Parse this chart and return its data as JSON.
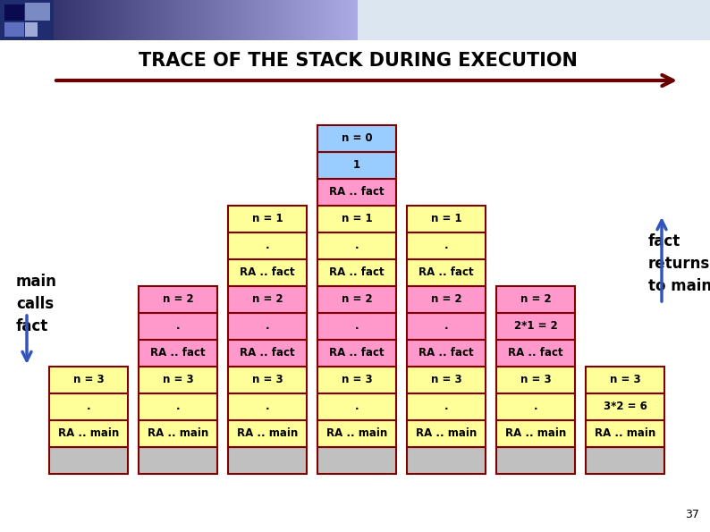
{
  "title": "TRACE OF THE STACK DURING EXECUTION",
  "bg_color": "#ffffff",
  "arrow_color": "#6b0000",
  "colors": {
    "yellow": "#ffff99",
    "pink": "#ff99cc",
    "blue_light": "#99ccff",
    "gray": "#c0c0c0",
    "border": "#800000"
  },
  "col_data": [
    [
      {
        "text": "n = 3",
        "color": "yellow"
      },
      {
        "text": ".",
        "color": "yellow"
      },
      {
        "text": "RA .. main",
        "color": "yellow"
      },
      {
        "text": "",
        "color": "gray"
      }
    ],
    [
      {
        "text": "n = 2",
        "color": "pink"
      },
      {
        "text": ".",
        "color": "pink"
      },
      {
        "text": "RA .. fact",
        "color": "pink"
      },
      {
        "text": "n = 3",
        "color": "yellow"
      },
      {
        "text": ".",
        "color": "yellow"
      },
      {
        "text": "RA .. main",
        "color": "yellow"
      },
      {
        "text": "",
        "color": "gray"
      }
    ],
    [
      {
        "text": "n = 1",
        "color": "yellow"
      },
      {
        "text": ".",
        "color": "yellow"
      },
      {
        "text": "RA .. fact",
        "color": "yellow"
      },
      {
        "text": "n = 2",
        "color": "pink"
      },
      {
        "text": ".",
        "color": "pink"
      },
      {
        "text": "RA .. fact",
        "color": "pink"
      },
      {
        "text": "n = 3",
        "color": "yellow"
      },
      {
        "text": ".",
        "color": "yellow"
      },
      {
        "text": "RA .. main",
        "color": "yellow"
      },
      {
        "text": "",
        "color": "gray"
      }
    ],
    [
      {
        "text": "n = 0",
        "color": "blue_light"
      },
      {
        "text": "1",
        "color": "blue_light"
      },
      {
        "text": "RA .. fact",
        "color": "pink"
      },
      {
        "text": "n = 1",
        "color": "yellow"
      },
      {
        "text": ".",
        "color": "yellow"
      },
      {
        "text": "RA .. fact",
        "color": "yellow"
      },
      {
        "text": "n = 2",
        "color": "pink"
      },
      {
        "text": ".",
        "color": "pink"
      },
      {
        "text": "RA .. fact",
        "color": "pink"
      },
      {
        "text": "n = 3",
        "color": "yellow"
      },
      {
        "text": ".",
        "color": "yellow"
      },
      {
        "text": "RA .. main",
        "color": "yellow"
      },
      {
        "text": "",
        "color": "gray"
      }
    ],
    [
      {
        "text": "n = 1",
        "color": "yellow"
      },
      {
        "text": ".",
        "color": "yellow"
      },
      {
        "text": "RA .. fact",
        "color": "yellow"
      },
      {
        "text": "n = 2",
        "color": "pink"
      },
      {
        "text": ".",
        "color": "pink"
      },
      {
        "text": "RA .. fact",
        "color": "pink"
      },
      {
        "text": "n = 3",
        "color": "yellow"
      },
      {
        "text": ".",
        "color": "yellow"
      },
      {
        "text": "RA .. main",
        "color": "yellow"
      },
      {
        "text": "",
        "color": "gray"
      }
    ],
    [
      {
        "text": "n = 2",
        "color": "pink"
      },
      {
        "text": "2*1 = 2",
        "color": "pink"
      },
      {
        "text": "RA .. fact",
        "color": "pink"
      },
      {
        "text": "n = 3",
        "color": "yellow"
      },
      {
        "text": ".",
        "color": "yellow"
      },
      {
        "text": "RA .. main",
        "color": "yellow"
      },
      {
        "text": "",
        "color": "gray"
      }
    ],
    [
      {
        "text": "n = 3",
        "color": "yellow"
      },
      {
        "text": "3*2 = 6",
        "color": "yellow"
      },
      {
        "text": "RA .. main",
        "color": "yellow"
      },
      {
        "text": "",
        "color": "gray"
      }
    ]
  ],
  "left_label": "main\ncalls\nfact",
  "right_label": "fact\nreturns\nto main",
  "page_number": "37"
}
